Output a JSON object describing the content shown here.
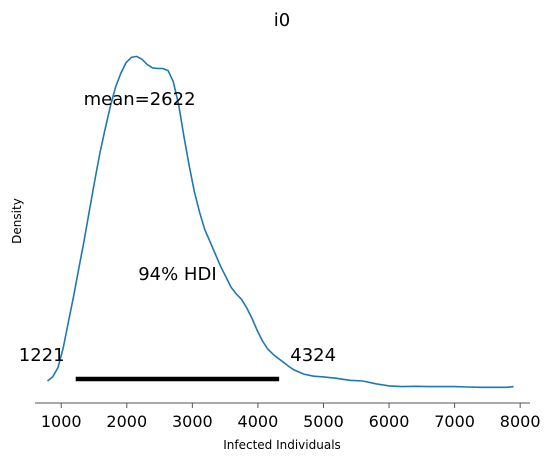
{
  "chart_data": {
    "type": "area",
    "title": "i0",
    "xlabel": "Infected Individuals",
    "ylabel": "Density",
    "xlim": [
      600,
      8150
    ],
    "ylim": [
      0,
      1.0
    ],
    "xticks": [
      1000,
      2000,
      3000,
      4000,
      5000,
      6000,
      7000,
      8000
    ],
    "grid": false,
    "line_color": "#1f77b4",
    "hdi_color": "#000000",
    "series": [
      {
        "x": [
          790,
          870,
          950,
          1030,
          1110,
          1190,
          1270,
          1350,
          1430,
          1510,
          1590,
          1670,
          1750,
          1830,
          1910,
          1990,
          2070,
          2150,
          2230,
          2310,
          2390,
          2470,
          2550,
          2630,
          2710,
          2790,
          2870,
          2950,
          3030,
          3110,
          3190,
          3270,
          3350,
          3430,
          3510,
          3590,
          3670,
          3750,
          3830,
          3910,
          3990,
          4070,
          4150,
          4230,
          4310,
          4390,
          4470,
          4550,
          4700,
          4850,
          5000,
          5200,
          5400,
          5600,
          5800,
          6000,
          6200,
          6400,
          6600,
          6800,
          7000,
          7200,
          7400,
          7600,
          7800,
          7900
        ],
        "y": [
          0.02,
          0.032,
          0.058,
          0.115,
          0.19,
          0.265,
          0.345,
          0.425,
          0.51,
          0.595,
          0.675,
          0.745,
          0.81,
          0.865,
          0.905,
          0.935,
          0.95,
          0.953,
          0.945,
          0.93,
          0.92,
          0.918,
          0.918,
          0.912,
          0.88,
          0.815,
          0.725,
          0.64,
          0.565,
          0.505,
          0.455,
          0.42,
          0.385,
          0.35,
          0.32,
          0.29,
          0.27,
          0.255,
          0.23,
          0.2,
          0.165,
          0.135,
          0.112,
          0.097,
          0.085,
          0.074,
          0.062,
          0.052,
          0.04,
          0.034,
          0.032,
          0.028,
          0.022,
          0.02,
          0.012,
          0.006,
          0.004,
          0.005,
          0.004,
          0.004,
          0.004,
          0.003,
          0.002,
          0.002,
          0.002,
          0.004
        ]
      }
    ],
    "hdi": {
      "low": 1221,
      "high": 4324,
      "label": "94% HDI",
      "low_label": "1221",
      "high_label": "4324"
    },
    "mean": {
      "value": 2622,
      "label": "mean=2622"
    }
  }
}
